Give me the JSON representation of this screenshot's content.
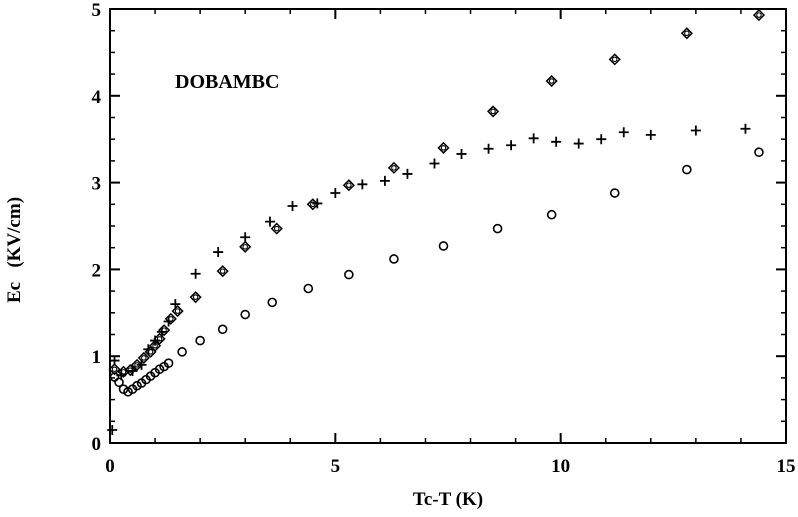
{
  "chart_data": {
    "type": "scatter",
    "xlabel": "Tc-T  (K)",
    "ylabel": "Ec   (KV/cm)",
    "annotation": "DOBAMBC",
    "xlim": [
      0,
      15
    ],
    "ylim": [
      0,
      5
    ],
    "xticks": [
      "0",
      "5",
      "10",
      "15"
    ],
    "yticks": [
      "0",
      "1",
      "2",
      "3",
      "4",
      "5"
    ],
    "grid": false,
    "legend": "none",
    "series": [
      {
        "marker": "diamond-circle",
        "x": [
          0.1,
          0.3,
          0.45,
          0.6,
          0.75,
          0.9,
          1.0,
          1.1,
          1.2,
          1.35,
          1.5,
          1.9,
          2.5,
          3.0,
          3.7,
          4.5,
          5.3,
          6.3,
          7.4,
          8.5,
          9.8,
          11.2,
          12.8,
          14.4
        ],
        "y": [
          0.85,
          0.82,
          0.84,
          0.9,
          0.98,
          1.05,
          1.12,
          1.2,
          1.3,
          1.43,
          1.52,
          1.68,
          1.98,
          2.26,
          2.47,
          2.75,
          2.97,
          3.17,
          3.4,
          3.82,
          4.17,
          4.42,
          4.72,
          4.93
        ]
      },
      {
        "marker": "plus",
        "x": [
          0.05,
          0.1,
          0.25,
          0.5,
          0.7,
          0.85,
          1.0,
          1.15,
          1.3,
          1.45,
          1.9,
          2.4,
          3.0,
          3.55,
          4.05,
          4.6,
          5.0,
          5.6,
          6.1,
          6.6,
          7.2,
          7.8,
          8.4,
          8.9,
          9.4,
          9.9,
          10.4,
          10.9,
          11.4,
          12.0,
          13.0,
          14.1
        ],
        "y": [
          0.15,
          0.95,
          0.78,
          0.83,
          0.9,
          1.08,
          1.18,
          1.28,
          1.4,
          1.6,
          1.95,
          2.2,
          2.37,
          2.55,
          2.73,
          2.76,
          2.88,
          2.98,
          3.02,
          3.1,
          3.22,
          3.33,
          3.39,
          3.43,
          3.51,
          3.47,
          3.45,
          3.5,
          3.58,
          3.55,
          3.6,
          3.62
        ]
      },
      {
        "marker": "circle",
        "x": [
          0.1,
          0.2,
          0.3,
          0.4,
          0.5,
          0.6,
          0.7,
          0.8,
          0.9,
          1.0,
          1.1,
          1.2,
          1.3,
          1.6,
          2.0,
          2.5,
          3.0,
          3.6,
          4.4,
          5.3,
          6.3,
          7.4,
          8.6,
          9.8,
          11.2,
          12.8,
          14.4
        ],
        "y": [
          0.76,
          0.7,
          0.62,
          0.59,
          0.62,
          0.66,
          0.69,
          0.73,
          0.77,
          0.81,
          0.85,
          0.88,
          0.92,
          1.05,
          1.18,
          1.31,
          1.48,
          1.62,
          1.78,
          1.94,
          2.12,
          2.27,
          2.47,
          2.63,
          2.88,
          3.15,
          3.35
        ]
      }
    ]
  }
}
